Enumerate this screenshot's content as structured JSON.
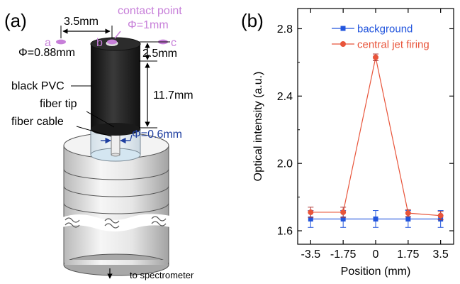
{
  "panel_a": {
    "label": "(a)",
    "dim_spacing": "3.5mm",
    "contact_point_label": "contact point",
    "contact_diameter": "Φ=1mm",
    "point_a": "a",
    "point_b": "b",
    "point_c": "c",
    "top_diameter": "Φ=0.88mm",
    "dim_top_gap": "2.5mm",
    "dim_pvc_length": "11.7mm",
    "black_pvc_label": "black PVC",
    "fiber_tip_label": "fiber tip",
    "fiber_cable_label": "fiber cable",
    "fiber_diameter": "Φ=0.6mm",
    "to_spectrometer": "to spectrometer",
    "colors": {
      "annotation_violet": "#c77fd9",
      "dimension_blue": "#1f3fa0",
      "pvc_black": "#232323"
    }
  },
  "panel_b": {
    "label": "(b)"
  },
  "chart_data": {
    "type": "line",
    "xlabel": "Position (mm)",
    "ylabel": "Optical intensity (a.u.)",
    "x": [
      -3.5,
      -1.75,
      0,
      1.75,
      3.5
    ],
    "x_tick_labels": [
      "-3.5",
      "-1.75",
      "0",
      "1.75",
      "3.5"
    ],
    "xlim": [
      -4.2,
      4.2
    ],
    "ylim": [
      1.52,
      2.92
    ],
    "y_ticks": [
      1.6,
      2.0,
      2.4,
      2.8
    ],
    "y_tick_labels": [
      "1.6",
      "2.0",
      "2.4",
      "2.8"
    ],
    "legend_position": "top-right",
    "grid": false,
    "series": [
      {
        "name": "background",
        "color": "#2255dd",
        "marker": "square",
        "values": [
          1.67,
          1.67,
          1.67,
          1.67,
          1.67
        ],
        "errors": [
          0.05,
          0.05,
          0.05,
          0.05,
          0.05
        ]
      },
      {
        "name": "central jet firing",
        "color": "#e8543a",
        "marker": "circle",
        "values": [
          1.71,
          1.71,
          2.63,
          1.705,
          1.69
        ],
        "errors": [
          0.03,
          0.03,
          0.02,
          0.02,
          0.025
        ]
      }
    ]
  }
}
